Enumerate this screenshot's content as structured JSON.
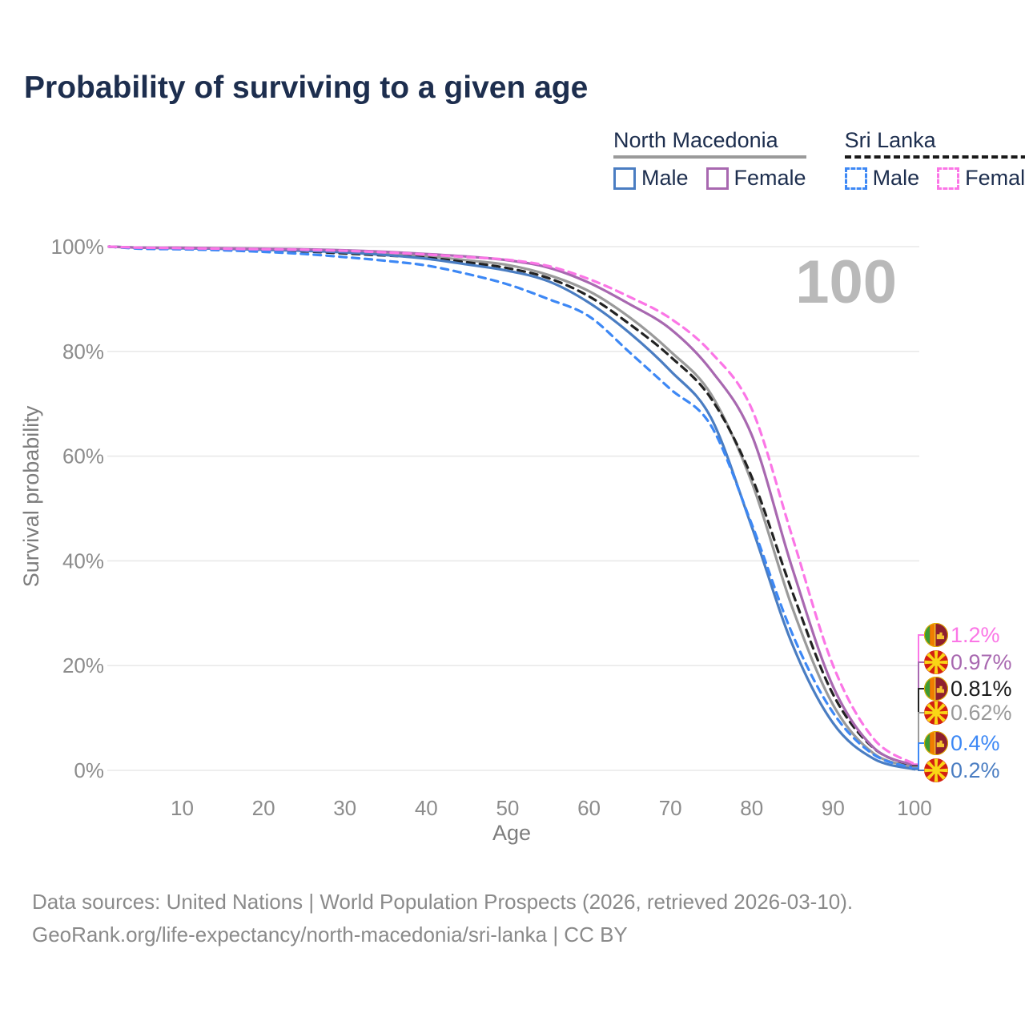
{
  "title": "Probability of surviving to a given age",
  "legend": {
    "groups": [
      {
        "label": "North Macedonia",
        "line_style": "solid",
        "line_color": "#9a9a9a",
        "items": [
          {
            "label": "Male",
            "color": "#4a7dc2",
            "dashed": false
          },
          {
            "label": "Female",
            "color": "#a868b0",
            "dashed": false
          }
        ]
      },
      {
        "label": "Sri Lanka",
        "line_style": "dashed",
        "line_color": "#1a1a1a",
        "items": [
          {
            "label": "Male",
            "color": "#3d88f5",
            "dashed": true
          },
          {
            "label": "Female",
            "color": "#fb76e6",
            "dashed": true
          }
        ]
      }
    ]
  },
  "footer": {
    "line1": "Data sources: United Nations | World Population Prospects (2026, retrieved 2026-03-10).",
    "line2": "GeoRank.org/life-expectancy/north-macedonia/sri-lanka | CC BY"
  },
  "chart_data": {
    "type": "line",
    "title": "Probability of surviving to a given age",
    "xlabel": "Age",
    "ylabel": "Survival probability",
    "watermark": "100",
    "grid": "horizontal",
    "legend_position": "top-right",
    "xlim": [
      1,
      100
    ],
    "ylim": [
      0,
      100
    ],
    "x_ticks": [
      10,
      20,
      30,
      40,
      50,
      60,
      70,
      80,
      90,
      100
    ],
    "y_tick_values": [
      0,
      20,
      40,
      60,
      80,
      100
    ],
    "y_tick_labels": [
      "0%",
      "20%",
      "40%",
      "60%",
      "80%",
      "100%"
    ],
    "ages": [
      1,
      5,
      10,
      15,
      20,
      25,
      30,
      35,
      40,
      45,
      50,
      55,
      60,
      65,
      70,
      75,
      80,
      85,
      90,
      95,
      100
    ],
    "series": [
      {
        "id": "nm-total",
        "name": "North Macedonia",
        "country": "North Macedonia",
        "sex": "Both",
        "flag": "mk",
        "color": "#9a9a9a",
        "dash": false,
        "end_label": "0.62%",
        "values": [
          100,
          99.8,
          99.7,
          99.6,
          99.5,
          99.3,
          99.1,
          98.7,
          98.2,
          97.4,
          96.5,
          94.6,
          91.5,
          86.5,
          80.0,
          71.8,
          55.0,
          31.0,
          12.5,
          3.2,
          0.62
        ]
      },
      {
        "id": "sl-total",
        "name": "Sri Lanka",
        "country": "Sri Lanka",
        "sex": "Both",
        "flag": "lk",
        "color": "#222222",
        "dash": true,
        "end_label": "0.81%",
        "end_label_color": "#1a1a1a",
        "values": [
          100,
          99.7,
          99.6,
          99.5,
          99.3,
          99.1,
          98.7,
          98.3,
          97.9,
          97.0,
          95.9,
          94.0,
          90.5,
          85.2,
          79.0,
          71.0,
          56.0,
          34.0,
          14.5,
          4.2,
          0.81
        ]
      },
      {
        "id": "nm-male",
        "name": "North Macedonia Male",
        "country": "North Macedonia",
        "sex": "Male",
        "flag": "mk",
        "color": "#4a7dc2",
        "dash": false,
        "end_label": "0.2%",
        "values": [
          100,
          99.8,
          99.7,
          99.6,
          99.4,
          99.2,
          98.9,
          98.4,
          97.7,
          96.6,
          95.4,
          93.4,
          89.3,
          83.5,
          76.3,
          67.3,
          46.5,
          24.0,
          9.0,
          2.2,
          0.2
        ]
      },
      {
        "id": "sl-male",
        "name": "Sri Lanka Male",
        "country": "Sri Lanka",
        "sex": "Male",
        "flag": "lk",
        "color": "#3d88f5",
        "dash": true,
        "end_label": "0.4%",
        "values": [
          100,
          99.6,
          99.5,
          99.3,
          99.0,
          98.6,
          98.0,
          97.3,
          96.4,
          94.8,
          92.8,
          90.0,
          86.7,
          79.8,
          72.8,
          65.8,
          47.0,
          26.0,
          11.0,
          3.0,
          0.4
        ]
      },
      {
        "id": "nm-female",
        "name": "North Macedonia Female",
        "country": "North Macedonia",
        "sex": "Female",
        "flag": "mk",
        "color": "#a868b0",
        "dash": false,
        "end_label": "0.97%",
        "values": [
          100,
          99.8,
          99.8,
          99.7,
          99.6,
          99.5,
          99.3,
          99.0,
          98.6,
          98.1,
          97.4,
          96.0,
          93.1,
          89.0,
          84.3,
          76.4,
          64.0,
          38.5,
          16.0,
          4.3,
          0.97
        ]
      },
      {
        "id": "sl-female",
        "name": "Sri Lanka Female",
        "country": "Sri Lanka",
        "sex": "Female",
        "flag": "lk",
        "color": "#fb76e6",
        "dash": true,
        "end_label": "1.2%",
        "values": [
          100,
          99.8,
          99.7,
          99.6,
          99.5,
          99.4,
          99.2,
          98.9,
          98.5,
          98.0,
          97.5,
          96.3,
          93.8,
          90.4,
          86.3,
          79.8,
          69.0,
          44.5,
          20.0,
          6.0,
          1.2
        ]
      }
    ]
  }
}
